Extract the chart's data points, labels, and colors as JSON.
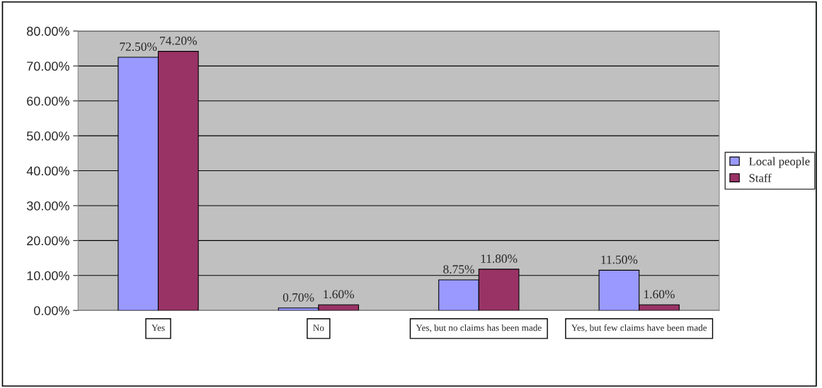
{
  "chart_data": {
    "type": "bar",
    "categories": [
      "Yes",
      "No",
      "Yes, but no claims has been made",
      "Yes, but few claims have been made"
    ],
    "series": [
      {
        "name": "Local people",
        "color": "#9999ff",
        "values": [
          72.5,
          0.7,
          8.75,
          11.5
        ],
        "value_labels": [
          "72.50%",
          "0.70%",
          "8.75%",
          "11.50%"
        ]
      },
      {
        "name": "Staff",
        "color": "#993366",
        "values": [
          74.2,
          1.6,
          11.8,
          1.6
        ],
        "value_labels": [
          "74.20%",
          "1.60%",
          "11.80%",
          "1.60%"
        ]
      }
    ],
    "ylim": [
      0,
      80
    ],
    "yticks": [
      {
        "value": 0,
        "label": "0.00%"
      },
      {
        "value": 10,
        "label": "10.00%"
      },
      {
        "value": 20,
        "label": "20.00%"
      },
      {
        "value": 30,
        "label": "30.00%"
      },
      {
        "value": 40,
        "label": "40.00%"
      },
      {
        "value": 50,
        "label": "50.00%"
      },
      {
        "value": 60,
        "label": "60.00%"
      },
      {
        "value": 70,
        "label": "70.00%"
      },
      {
        "value": 80,
        "label": "80.00%"
      }
    ],
    "grid": "y",
    "legend": "right"
  }
}
